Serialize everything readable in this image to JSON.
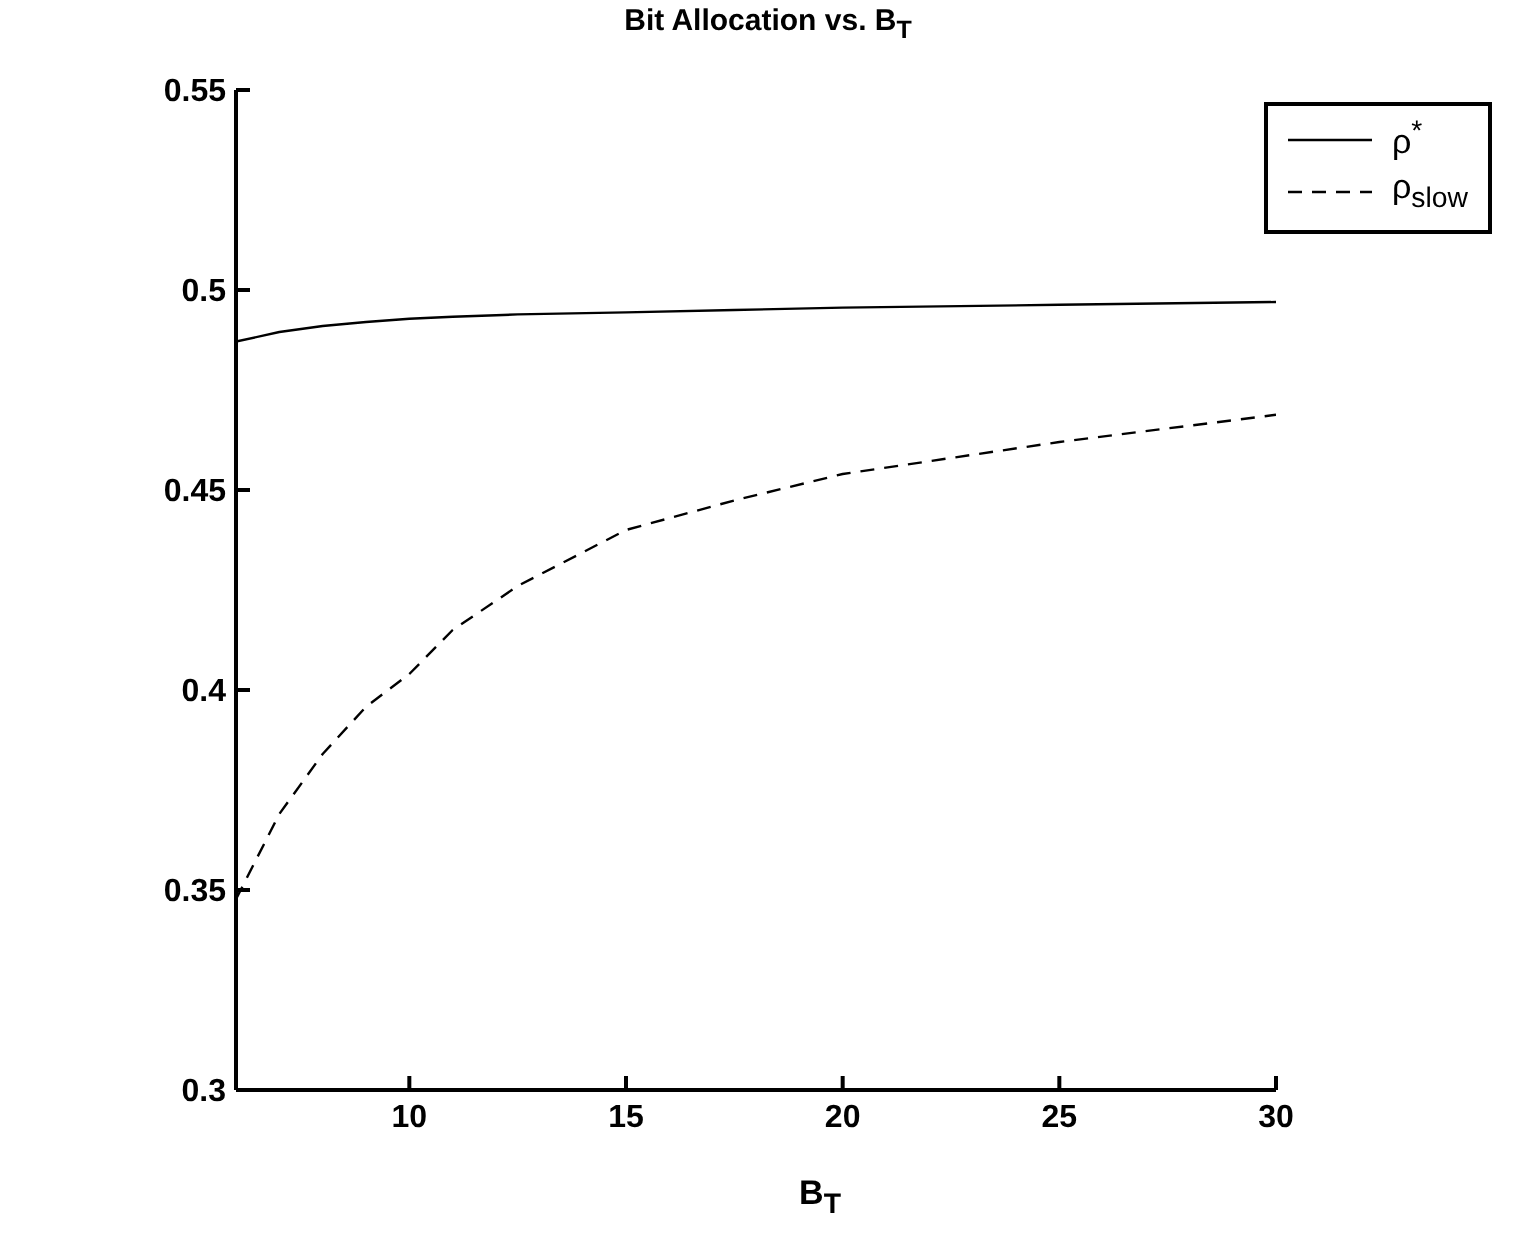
{
  "chart_data": {
    "type": "line",
    "title": "Bit Allocation vs. B$_{T}$",
    "xlabel": "B$_{T}$",
    "x": [
      6,
      7,
      8,
      9,
      10,
      11,
      12,
      12.5,
      15,
      17.5,
      20,
      25,
      30
    ],
    "series": [
      {
        "name": "ρ$^{*}$",
        "color": "#000000",
        "line_style": "solid",
        "values": [
          0.4871,
          0.4895,
          0.491,
          0.492,
          0.4928,
          0.4933,
          0.4937,
          0.4939,
          0.4944,
          0.495,
          0.4956,
          0.4963,
          0.497
        ]
      },
      {
        "name": "ρ$_{slow}$",
        "color": "#000000",
        "line_style": "dashed",
        "values": [
          0.3477,
          0.369,
          0.384,
          0.3958,
          0.404,
          0.415,
          0.4223,
          0.426,
          0.44,
          0.4474,
          0.454,
          0.462,
          0.4688
        ]
      }
    ],
    "xlim": [
      6,
      30
    ],
    "xticks": [
      10,
      15,
      20,
      25,
      30
    ],
    "ylim": [
      0.3,
      0.55
    ],
    "yticks": [
      0.3,
      0.35,
      0.4,
      0.45,
      0.5,
      0.55
    ],
    "grid": false,
    "legend": "top right",
    "marker": "none"
  }
}
